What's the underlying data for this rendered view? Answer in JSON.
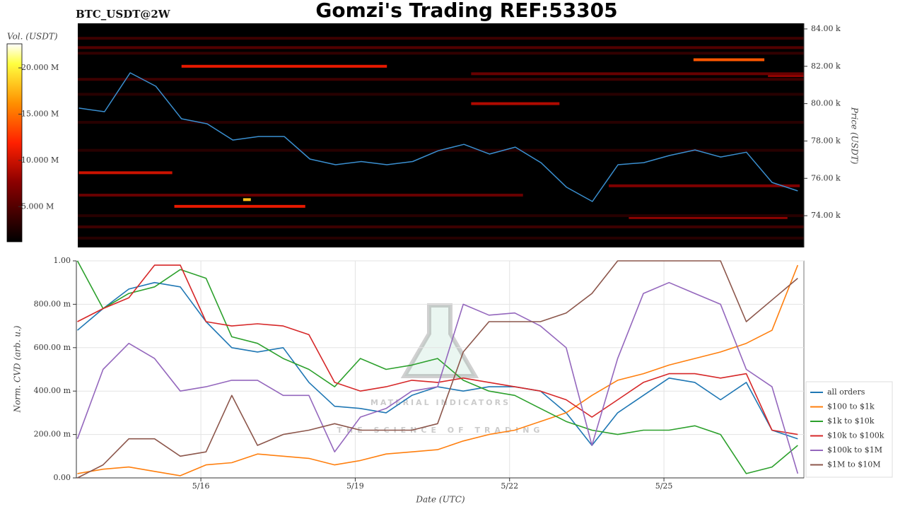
{
  "chart_data": [
    {
      "type": "heatmap",
      "title": "Gomzi's Trading REF:53305",
      "subtitle": "BTC_USDT@2W",
      "ylabel": "Price (USDT)",
      "colorbar_label": "Vol. (USDT)",
      "colormap": "hot",
      "xlim": [
        13.58,
        27.72
      ],
      "ylim": [
        72300,
        84300
      ],
      "yticks": [
        {
          "value": 74000,
          "label": "74.00 k"
        },
        {
          "value": 76000,
          "label": "76.00 k"
        },
        {
          "value": 78000,
          "label": "78.00 k"
        },
        {
          "value": 80000,
          "label": "80.00 k"
        },
        {
          "value": 82000,
          "label": "82.00 k"
        },
        {
          "value": 84000,
          "label": "84.00 k"
        }
      ],
      "clim": [
        1200000,
        22600000
      ],
      "cticks": [
        {
          "value": 5000000,
          "label": "5.000 M"
        },
        {
          "value": 10000000,
          "label": "10.000 M"
        },
        {
          "value": 15000000,
          "label": "15.000 M"
        },
        {
          "value": 20000000,
          "label": "20.000 M"
        }
      ],
      "levels": {
        "price": [
          82350,
          82000,
          81500,
          81600,
          81300,
          80000,
          76300,
          75600,
          75100,
          74500,
          73900,
          83500,
          83000,
          82700,
          80500,
          79000,
          77500,
          74000,
          73400,
          72800,
          74860
        ],
        "x_start": [
          25.57,
          15.6,
          27.02,
          21.24,
          13.58,
          21.24,
          13.6,
          23.92,
          13.6,
          15.46,
          24.31,
          13.58,
          13.58,
          13.58,
          13.58,
          13.58,
          13.58,
          13.58,
          13.58,
          13.58,
          16.8
        ],
        "x_end": [
          26.95,
          19.6,
          27.72,
          27.72,
          27.72,
          22.96,
          15.42,
          27.64,
          22.25,
          18.01,
          27.4,
          27.72,
          27.72,
          27.72,
          27.72,
          27.72,
          27.72,
          27.72,
          27.72,
          27.72,
          16.95
        ],
        "values": [
          14000000,
          11000000,
          8000000,
          6000000,
          4000000,
          9000000,
          10000000,
          7000000,
          6000000,
          11000000,
          8000000,
          4000000,
          5000000,
          3500000,
          3000000,
          3000000,
          3000000,
          3000000,
          4000000,
          3000000,
          18000000
        ]
      },
      "x": [
        13.6,
        14.1,
        14.6,
        15.1,
        15.6,
        16.1,
        16.6,
        17.1,
        17.6,
        18.1,
        18.6,
        19.1,
        19.6,
        20.1,
        20.6,
        21.1,
        21.6,
        22.1,
        22.6,
        23.1,
        23.6,
        24.1,
        24.6,
        25.1,
        25.6,
        26.1,
        26.6,
        27.1,
        27.6
      ],
      "series": [
        {
          "color": "#3a8fd0",
          "values": [
            79760,
            79570,
            81650,
            80930,
            79190,
            78920,
            78050,
            78240,
            78240,
            77030,
            76730,
            76900,
            76730,
            76900,
            77480,
            77820,
            77300,
            77670,
            76840,
            75520,
            74760,
            76730,
            76840,
            77220,
            77520,
            77140,
            77400,
            75780,
            75330
          ]
        }
      ]
    },
    {
      "type": "line",
      "xlabel": "Date (UTC)",
      "ylabel": "Norm. CVD (arb. u.)",
      "watermark": {
        "title": "MATERIAL INDICATORS",
        "subtitle": "THE SCIENCE OF TRADING"
      },
      "grid": true,
      "legend": "lower right",
      "xlim": [
        13.58,
        27.72
      ],
      "ylim": [
        0,
        1
      ],
      "xticks": [
        {
          "value": 16,
          "label": "5/16"
        },
        {
          "value": 19,
          "label": "5/19"
        },
        {
          "value": 22,
          "label": "5/22"
        },
        {
          "value": 25,
          "label": "5/25"
        }
      ],
      "yticks": [
        {
          "value": 0,
          "label": "0.00"
        },
        {
          "value": 0.2,
          "label": "200.00 m"
        },
        {
          "value": 0.4,
          "label": "400.00 m"
        },
        {
          "value": 0.6,
          "label": "600.00 m"
        },
        {
          "value": 0.8,
          "label": "800.00 m"
        },
        {
          "value": 1,
          "label": "1.00"
        }
      ],
      "x": [
        13.6,
        14.1,
        14.6,
        15.1,
        15.6,
        16.1,
        16.6,
        17.1,
        17.6,
        18.1,
        18.6,
        19.1,
        19.6,
        20.1,
        20.6,
        21.1,
        21.6,
        22.1,
        22.6,
        23.1,
        23.6,
        24.1,
        24.6,
        25.1,
        25.6,
        26.1,
        26.6,
        27.1,
        27.6
      ],
      "series": [
        {
          "name": "all orders",
          "color": "#1f77b4",
          "values": [
            0.68,
            0.78,
            0.87,
            0.9,
            0.88,
            0.72,
            0.6,
            0.58,
            0.6,
            0.44,
            0.33,
            0.32,
            0.3,
            0.38,
            0.42,
            0.4,
            0.42,
            0.42,
            0.4,
            0.3,
            0.15,
            0.3,
            0.38,
            0.46,
            0.44,
            0.36,
            0.44,
            0.22,
            0.18
          ]
        },
        {
          "name": "$100 to $1k",
          "color": "#ff7f0e",
          "values": [
            0.02,
            0.04,
            0.05,
            0.03,
            0.01,
            0.06,
            0.07,
            0.11,
            0.1,
            0.09,
            0.06,
            0.08,
            0.11,
            0.12,
            0.13,
            0.17,
            0.2,
            0.22,
            0.26,
            0.3,
            0.38,
            0.45,
            0.48,
            0.52,
            0.55,
            0.58,
            0.62,
            0.68,
            0.98
          ]
        },
        {
          "name": "$1k to $10k",
          "color": "#2ca02c",
          "values": [
            1.0,
            0.78,
            0.85,
            0.88,
            0.96,
            0.92,
            0.65,
            0.62,
            0.55,
            0.5,
            0.42,
            0.55,
            0.5,
            0.52,
            0.55,
            0.45,
            0.4,
            0.38,
            0.32,
            0.26,
            0.22,
            0.2,
            0.22,
            0.22,
            0.24,
            0.2,
            0.02,
            0.05,
            0.15
          ]
        },
        {
          "name": "$10k to $100k",
          "color": "#d62728",
          "values": [
            0.72,
            0.78,
            0.83,
            0.98,
            0.98,
            0.72,
            0.7,
            0.71,
            0.7,
            0.66,
            0.44,
            0.4,
            0.42,
            0.45,
            0.44,
            0.46,
            0.44,
            0.42,
            0.4,
            0.36,
            0.28,
            0.36,
            0.44,
            0.48,
            0.48,
            0.46,
            0.48,
            0.22,
            0.2
          ]
        },
        {
          "name": "$100k to $1M",
          "color": "#9467bd",
          "values": [
            0.18,
            0.5,
            0.62,
            0.55,
            0.4,
            0.42,
            0.45,
            0.45,
            0.38,
            0.38,
            0.12,
            0.28,
            0.32,
            0.4,
            0.42,
            0.8,
            0.75,
            0.76,
            0.7,
            0.6,
            0.15,
            0.55,
            0.85,
            0.9,
            0.85,
            0.8,
            0.5,
            0.42,
            0.02
          ]
        },
        {
          "name": "$1M to $10M",
          "color": "#8c564b",
          "values": [
            0.0,
            0.06,
            0.18,
            0.18,
            0.1,
            0.12,
            0.38,
            0.15,
            0.2,
            0.22,
            0.25,
            0.22,
            0.22,
            0.22,
            0.25,
            0.58,
            0.72,
            0.72,
            0.72,
            0.76,
            0.85,
            1.0,
            1.0,
            1.0,
            1.0,
            1.0,
            0.72,
            0.82,
            0.92
          ]
        }
      ]
    }
  ]
}
